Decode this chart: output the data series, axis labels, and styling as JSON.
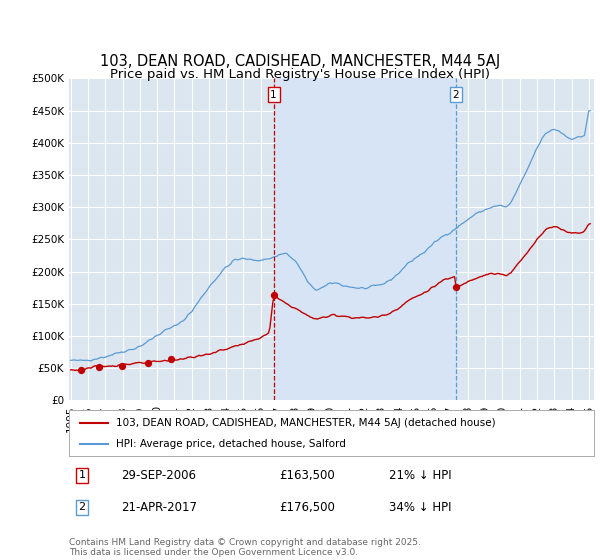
{
  "title": "103, DEAN ROAD, CADISHEAD, MANCHESTER, M44 5AJ",
  "subtitle": "Price paid vs. HM Land Registry's House Price Index (HPI)",
  "ylim": [
    0,
    500000
  ],
  "yticks": [
    0,
    50000,
    100000,
    150000,
    200000,
    250000,
    300000,
    350000,
    400000,
    450000,
    500000
  ],
  "ytick_labels": [
    "£0",
    "£50K",
    "£100K",
    "£150K",
    "£200K",
    "£250K",
    "£300K",
    "£350K",
    "£400K",
    "£450K",
    "£500K"
  ],
  "background_color": "#ffffff",
  "plot_bg_color": "#dce6f1",
  "highlight_bg_color": "#ccdaee",
  "grid_color": "#ffffff",
  "hpi_color": "#5b9bd5",
  "price_color": "#c00000",
  "vline1_color": "#c00000",
  "vline2_color": "#5b9bd5",
  "marker1_date": 2006.747,
  "marker2_date": 2017.302,
  "legend_label1": "103, DEAN ROAD, CADISHEAD, MANCHESTER, M44 5AJ (detached house)",
  "legend_label2": "HPI: Average price, detached house, Salford",
  "ann1_date": "29-SEP-2006",
  "ann1_price": "£163,500",
  "ann1_hpi": "21% ↓ HPI",
  "ann2_date": "21-APR-2017",
  "ann2_price": "£176,500",
  "ann2_hpi": "34% ↓ HPI",
  "footer": "Contains HM Land Registry data © Crown copyright and database right 2025.\nThis data is licensed under the Open Government Licence v3.0.",
  "title_fontsize": 10.5,
  "subtitle_fontsize": 9.5,
  "tick_fontsize": 7.5,
  "sale_dates": [
    1995.62,
    1996.62,
    1997.95,
    1999.45,
    2000.8,
    2006.747,
    2017.302
  ],
  "sale_prices": [
    47000,
    52500,
    54000,
    58000,
    64000,
    163500,
    176500
  ],
  "xtick_years": [
    1995,
    1996,
    1997,
    1998,
    1999,
    2000,
    2001,
    2002,
    2003,
    2004,
    2005,
    2006,
    2007,
    2008,
    2009,
    2010,
    2011,
    2012,
    2013,
    2014,
    2015,
    2016,
    2017,
    2018,
    2019,
    2020,
    2021,
    2022,
    2023,
    2024,
    2025
  ]
}
